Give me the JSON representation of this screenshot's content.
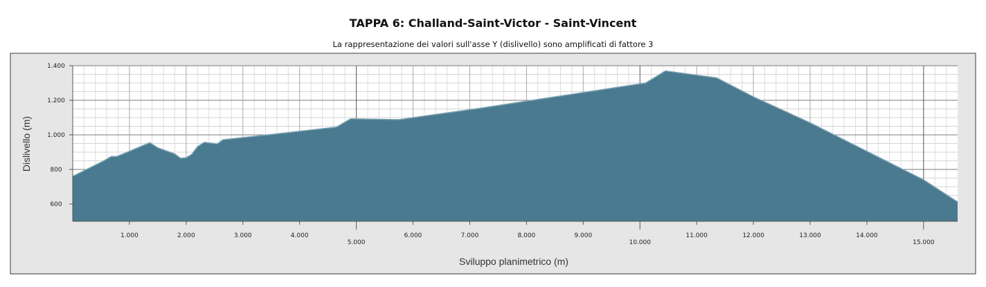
{
  "chart_data": {
    "type": "area",
    "title": "TAPPA 6: Challand-Saint-Victor - Saint-Vincent",
    "subtitle": "La rappresentazione dei valori sull'asse Y (dislivello) sono amplificati di fattore 3",
    "xlabel": "Sviluppo planimetrico (m)",
    "ylabel": "Dislivello (m)",
    "xlim": [
      0,
      15600
    ],
    "ylim": [
      500,
      1400
    ],
    "grid": true,
    "x_ticks": [
      {
        "value": 1000,
        "label": "1.000"
      },
      {
        "value": 2000,
        "label": "2.000"
      },
      {
        "value": 3000,
        "label": "3.000"
      },
      {
        "value": 4000,
        "label": "4.000"
      },
      {
        "value": 5000,
        "label": "5.000"
      },
      {
        "value": 6000,
        "label": "6.000"
      },
      {
        "value": 7000,
        "label": "7.000"
      },
      {
        "value": 8000,
        "label": "8.000"
      },
      {
        "value": 9000,
        "label": "9.000"
      },
      {
        "value": 10000,
        "label": "10.000"
      },
      {
        "value": 11000,
        "label": "11.000"
      },
      {
        "value": 12000,
        "label": "12.000"
      },
      {
        "value": 13000,
        "label": "13.000"
      },
      {
        "value": 14000,
        "label": "14.000"
      },
      {
        "value": 15000,
        "label": "15.000"
      }
    ],
    "y_ticks": [
      {
        "value": 600,
        "label": "600"
      },
      {
        "value": 800,
        "label": "800"
      },
      {
        "value": 1000,
        "label": "1.000"
      },
      {
        "value": 1200,
        "label": "1.200"
      },
      {
        "value": 1400,
        "label": "1.400"
      }
    ],
    "series": [
      {
        "color": "#4a7a8f",
        "x": [
          0,
          550,
          680,
          780,
          1000,
          1360,
          1500,
          1800,
          1900,
          2000,
          2100,
          2200,
          2320,
          2550,
          2650,
          3300,
          4650,
          4900,
          5750,
          7200,
          8000,
          10100,
          10450,
          11350,
          12000,
          13000,
          14000,
          15000,
          15600
        ],
        "y": [
          760,
          850,
          875,
          875,
          905,
          955,
          925,
          890,
          865,
          868,
          888,
          932,
          957,
          948,
          972,
          995,
          1045,
          1093,
          1088,
          1155,
          1195,
          1300,
          1370,
          1330,
          1220,
          1070,
          905,
          740,
          612
        ]
      }
    ],
    "colors": {
      "plot_bg": "#ffffff",
      "outer_bg": "#e6e6e6",
      "area_fill": "#4a7a8f",
      "area_stroke": "#7ea3b4"
    }
  }
}
